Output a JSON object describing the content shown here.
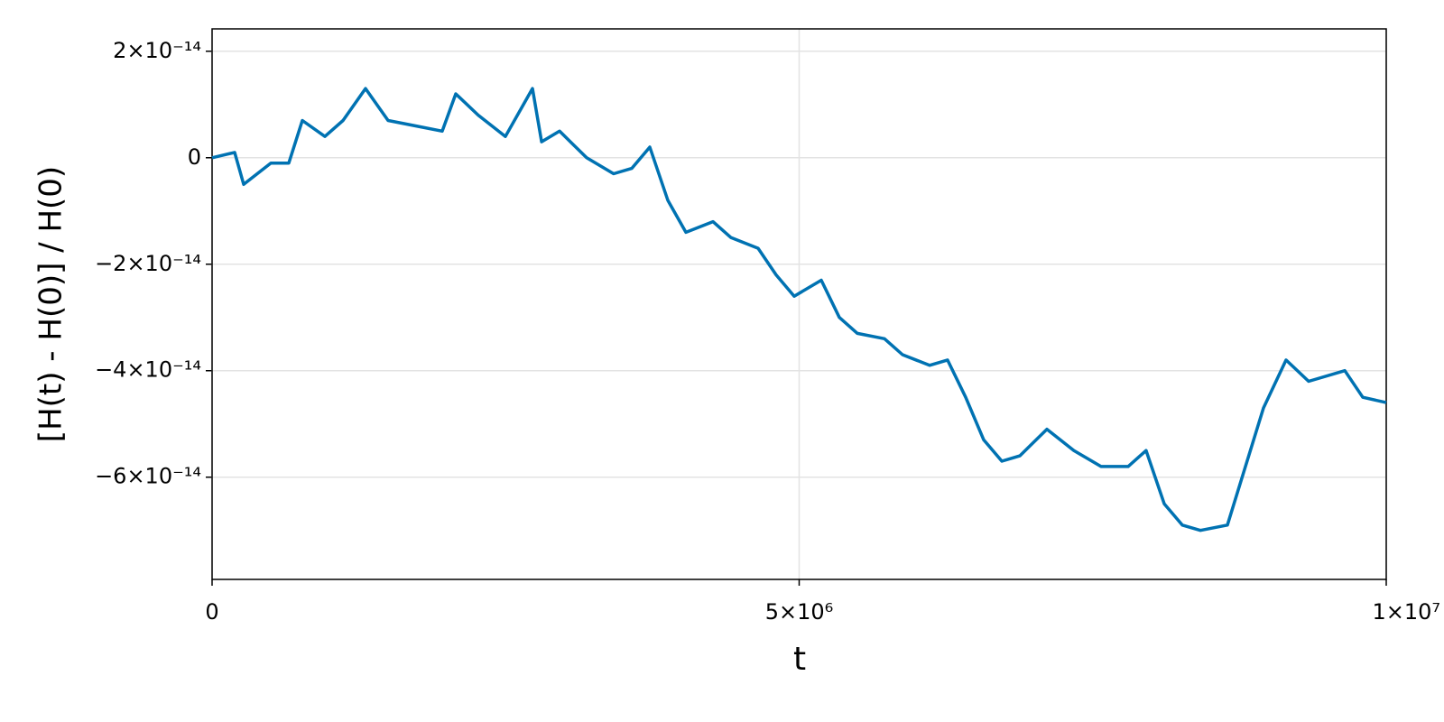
{
  "chart_data": {
    "type": "line",
    "x_label": "t",
    "y_label": "[H(t) - H(0)] / H(0)",
    "x": [
      0,
      192000,
      269000,
      500000,
      653000,
      769000,
      961000,
      1115000,
      1307000,
      1499000,
      1729000,
      1960000,
      2075000,
      2267000,
      2498000,
      2729000,
      2806000,
      2959000,
      3190000,
      3420000,
      3574000,
      3728000,
      3882000,
      4035000,
      4266000,
      4420000,
      4650000,
      4804000,
      4958000,
      5188000,
      5342000,
      5496000,
      5726000,
      5880000,
      6111000,
      6264000,
      6418000,
      6572000,
      6726000,
      6879000,
      7110000,
      7340000,
      7571000,
      7802000,
      7955000,
      8109000,
      8263000,
      8417000,
      8647000,
      8801000,
      8955000,
      9147000,
      9339000,
      9647000,
      9800000,
      10000000
    ],
    "series": [
      {
        "color": "#0072b2",
        "values": [
          0,
          1e-15,
          -5e-15,
          -1e-15,
          -1e-15,
          7e-15,
          4e-15,
          7e-15,
          1.3e-14,
          7e-15,
          6e-15,
          5e-15,
          1.2e-14,
          8e-15,
          4e-15,
          1.3e-14,
          3e-15,
          5e-15,
          0,
          -3e-15,
          -2e-15,
          2e-15,
          -8e-15,
          -1.4e-14,
          -1.2e-14,
          -1.5e-14,
          -1.7e-14,
          -2.2e-14,
          -2.6e-14,
          -2.3e-14,
          -3e-14,
          -3.3e-14,
          -3.4e-14,
          -3.7e-14,
          -3.9e-14,
          -3.8e-14,
          -4.5e-14,
          -5.3e-14,
          -5.7e-14,
          -5.6e-14,
          -5.1e-14,
          -5.5e-14,
          -5.8e-14,
          -5.8e-14,
          -5.5e-14,
          -6.5e-14,
          -6.9e-14,
          -7e-14,
          -6.9e-14,
          -5.8e-14,
          -4.7e-14,
          -3.8e-14,
          -4.2e-14,
          -4e-14,
          -4.5e-14,
          -4.6e-14
        ]
      }
    ],
    "xlim": [
      0,
      10000000
    ],
    "xticks": [
      0,
      {
        "value": 5000000,
        "label": "5×10⁶"
      },
      {
        "value": 10000000,
        "label": "1×10⁷"
      }
    ],
    "ylim": [
      -7.92e-14,
      2.42e-14
    ],
    "yticks": [
      {
        "value": -6e-14,
        "label": "−6×10⁻¹⁴"
      },
      {
        "value": -4e-14,
        "label": "−4×10⁻¹⁴"
      },
      {
        "value": -2e-14,
        "label": "−2×10⁻¹⁴"
      },
      0,
      {
        "value": 2e-14,
        "label": "2×10⁻¹⁴"
      }
    ],
    "grid": true
  }
}
